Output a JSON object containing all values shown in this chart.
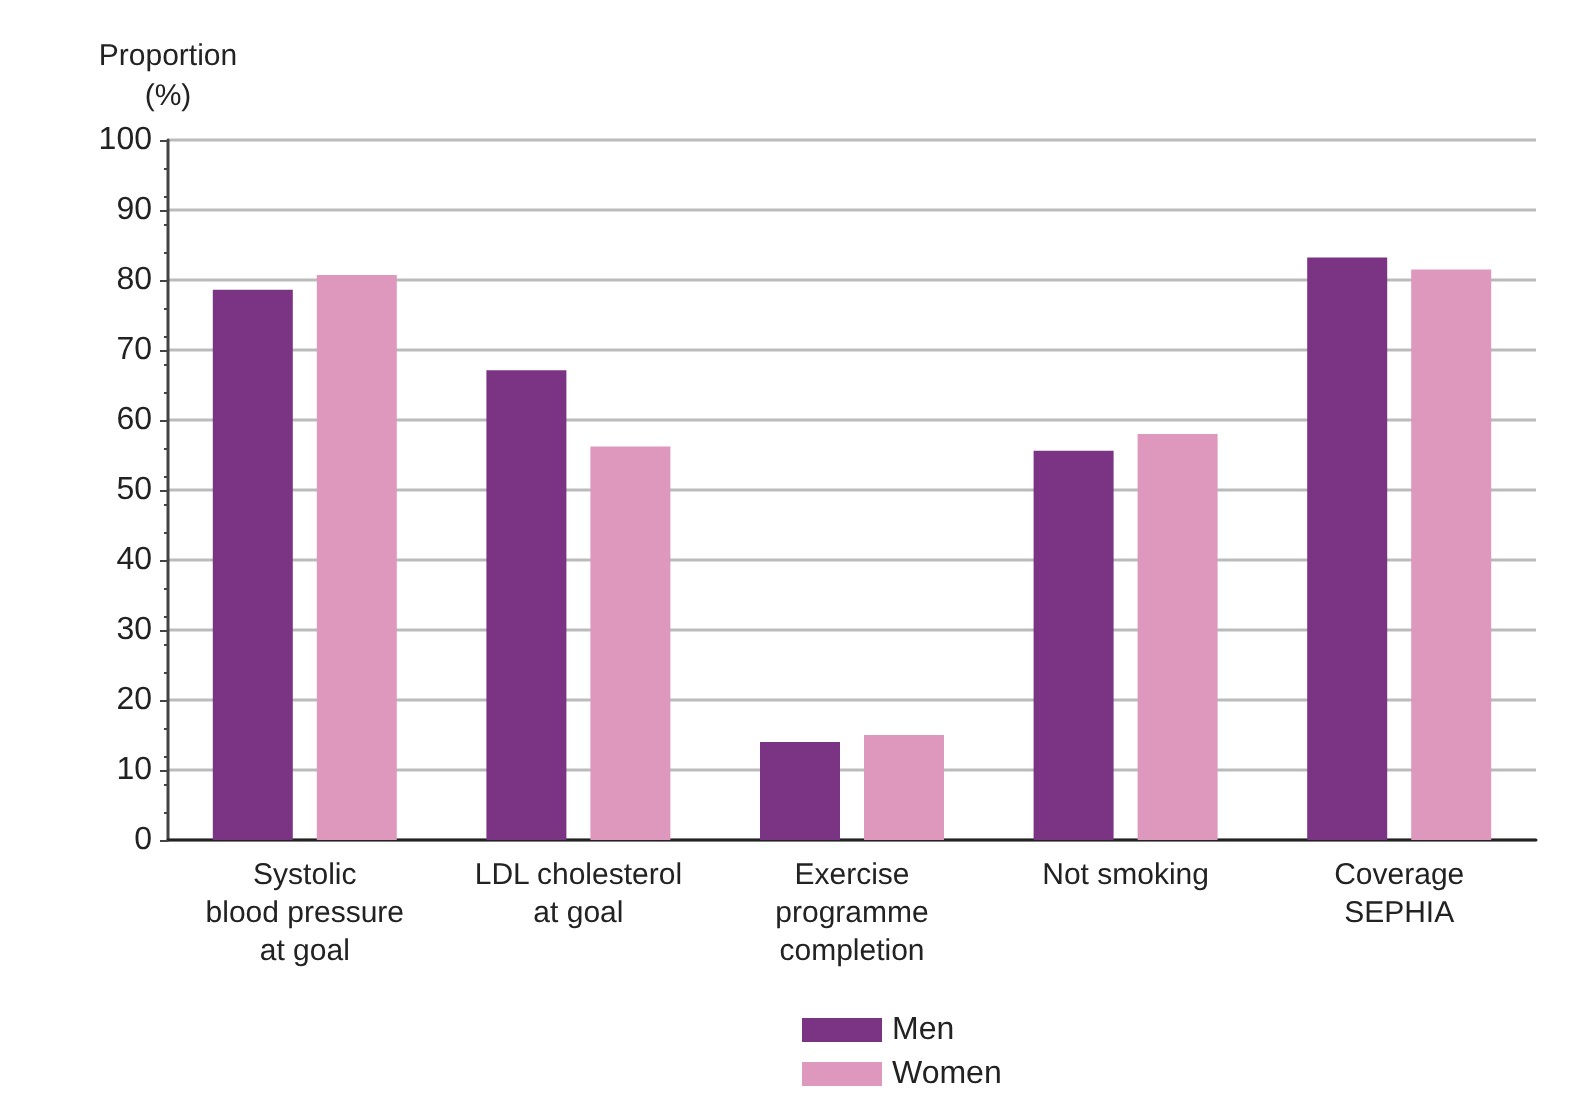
{
  "chart_data": {
    "type": "bar",
    "ylabel": "Proportion\n(%)",
    "categories": [
      "Systolic\nblood pressure\nat goal",
      "LDL cholesterol\nat goal",
      "Exercise\nprogramme\ncompletion",
      "Not smoking",
      "Coverage\nSEPHIA"
    ],
    "series": [
      {
        "name": "Men",
        "color": "#7b3384",
        "values": [
          78.6,
          67.1,
          14.0,
          55.6,
          83.2
        ]
      },
      {
        "name": "Women",
        "color": "#de98bd",
        "values": [
          80.7,
          56.2,
          15.0,
          58.0,
          81.5
        ]
      }
    ],
    "ylim": [
      0,
      100
    ],
    "yticks": [
      0,
      10,
      20,
      30,
      40,
      50,
      60,
      70,
      80,
      90,
      100
    ],
    "grid": "y",
    "legend": "bottom"
  }
}
